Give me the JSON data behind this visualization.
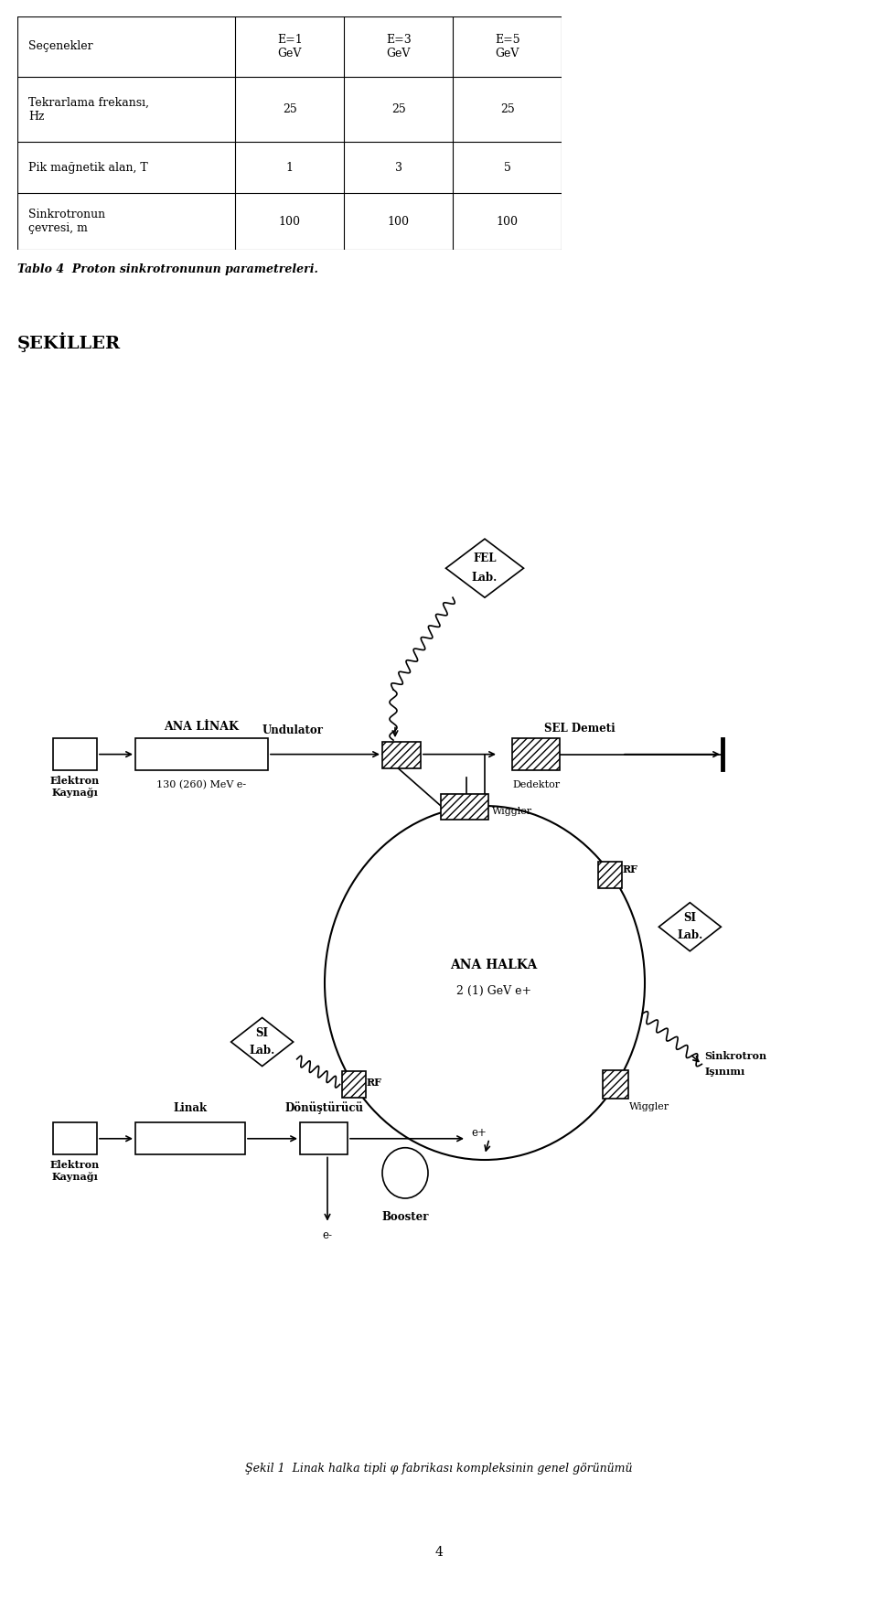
{
  "table_headers": [
    "Seçenekler",
    "E=1\nGeV",
    "E=3\nGeV",
    "E=5\nGeV"
  ],
  "table_rows": [
    [
      "Tekrarlama frekansı,\nHz",
      "25",
      "25",
      "25"
    ],
    [
      "Pik mağnetik alan, T",
      "1",
      "3",
      "5"
    ],
    [
      "Sinkrotronun\nçevresi, m",
      "100",
      "100",
      "100"
    ]
  ],
  "caption": "Tablo 4  Proton sinkrotronunun parametreleri.",
  "section_title": "ŞEKİLLER",
  "figure_caption": "Şekil 1  Linak halka tipli φ fabrikası kompleksinin genel görünümü",
  "page_number": "4",
  "bg_color": "#ffffff"
}
